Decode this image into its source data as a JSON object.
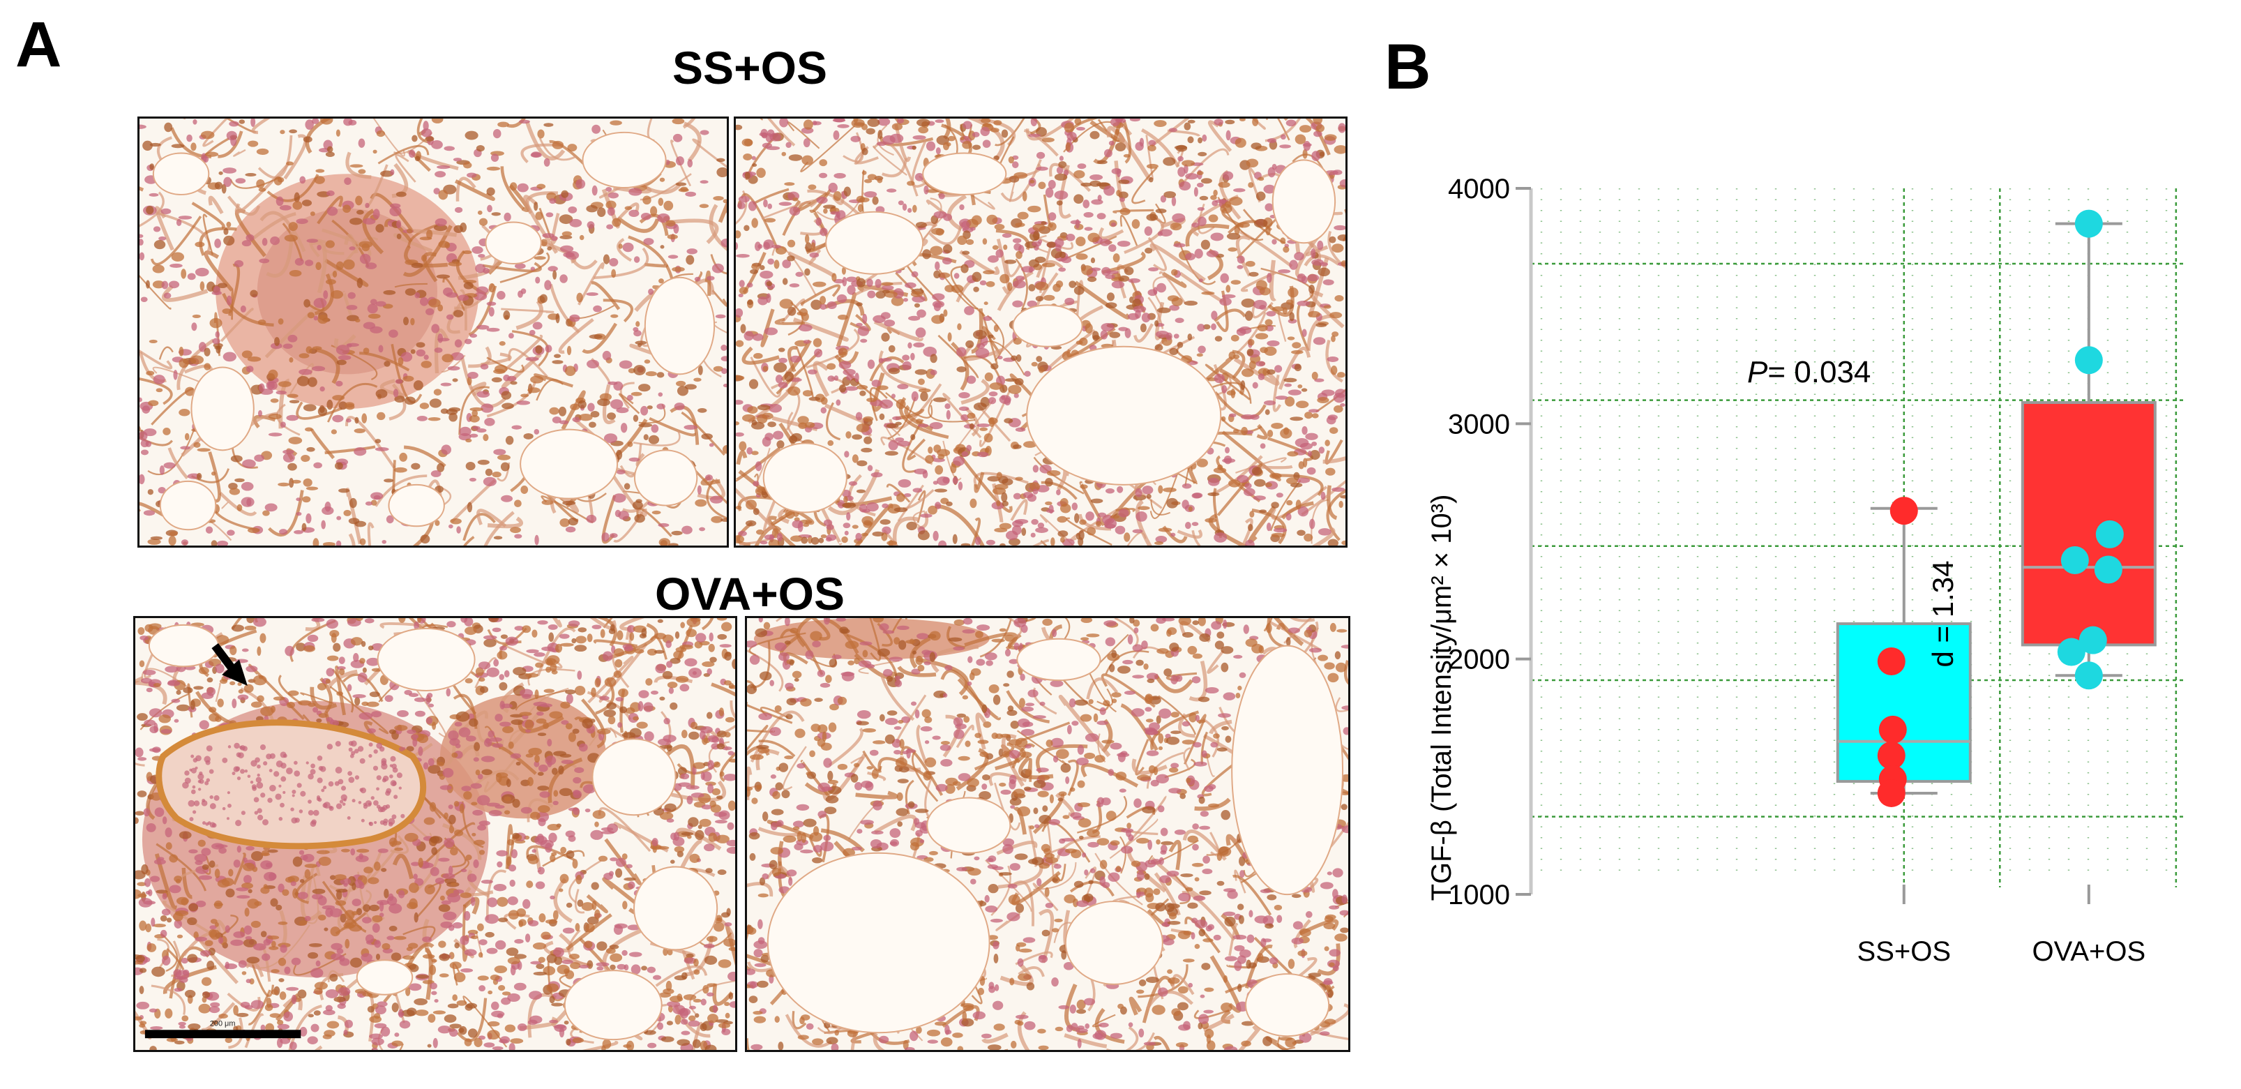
{
  "panel_a": {
    "letter": "A",
    "groups": [
      {
        "title": "SS+OS"
      },
      {
        "title": "OVA+OS",
        "annotation": "arrow",
        "scale_bar_label": "200 μm"
      }
    ],
    "colors": {
      "tissue_background": "#fbf6ef",
      "stain_brown": "#c0703a",
      "stain_pink": "#c56479",
      "wall_orange": "#d48a3a"
    }
  },
  "panel_b": {
    "letter": "B",
    "stat_p_italic": "P",
    "stat_p_value": "= 0.034",
    "stat_d": "d = 1.34",
    "colors": {
      "ss_box": "#00ffff",
      "ss_points": "#ff2b2b",
      "ova_box": "#ff3333",
      "ova_points": "#1ed8e0",
      "grid": "#3a9a3a",
      "axis": "#c8c8c8"
    }
  },
  "chart_data": {
    "type": "box",
    "title": "",
    "xlabel": "",
    "ylabel": "TGF-β (Total Intensity/μm² × 10³)",
    "ylim": [
      1000,
      4000
    ],
    "yticks": [
      1000,
      2000,
      3000,
      4000
    ],
    "categories": [
      "SS+OS",
      "OVA+OS"
    ],
    "series": [
      {
        "name": "SS+OS",
        "box": {
          "whisker_low": 1430,
          "q1": 1480,
          "median": 1650,
          "q3": 2150,
          "whisker_high": 2640
        },
        "points": [
          2630,
          1990,
          1700,
          1590,
          1490,
          1430
        ],
        "box_color": "#00ffff",
        "point_color": "#ff2b2b"
      },
      {
        "name": "OVA+OS",
        "box": {
          "whisker_low": 1930,
          "q1": 2060,
          "median": 2390,
          "q3": 3090,
          "whisker_high": 3850
        },
        "points": [
          3850,
          3270,
          2530,
          2420,
          2380,
          2080,
          2030,
          1930
        ],
        "box_color": "#ff3333",
        "point_color": "#1ed8e0"
      }
    ],
    "grid": true
  }
}
